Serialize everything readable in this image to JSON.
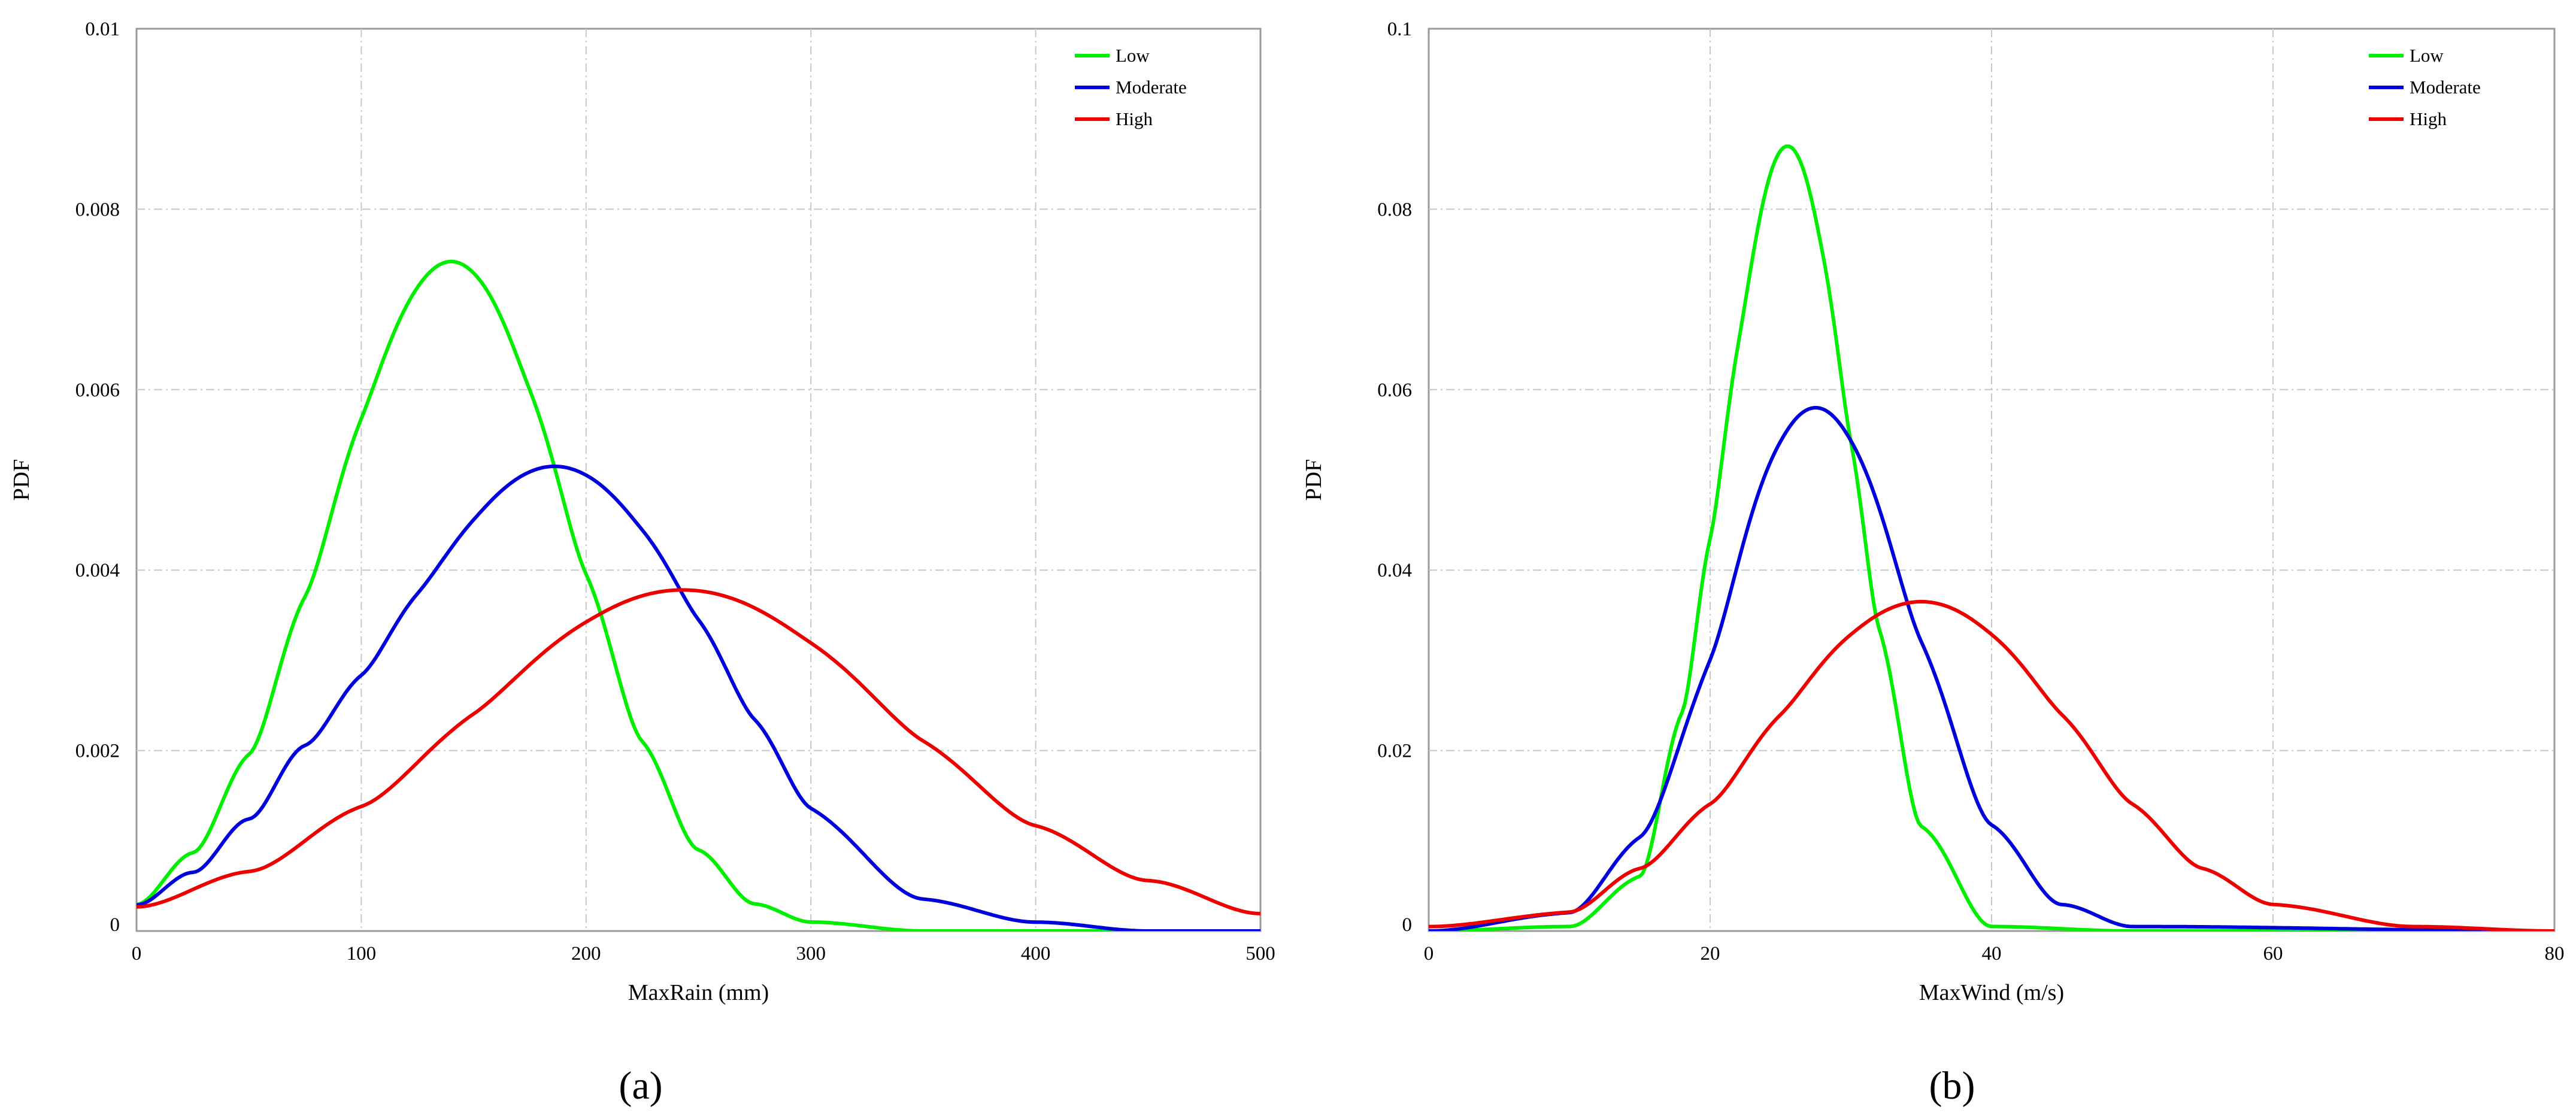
{
  "chart_data": [
    {
      "type": "line",
      "panel_label": "(a)",
      "xlabel": "MaxRain (mm)",
      "ylabel": "PDF",
      "xlim": [
        0,
        500
      ],
      "ylim": [
        0,
        0.01
      ],
      "x_ticks": [
        "0",
        "100",
        "200",
        "300",
        "400",
        "500"
      ],
      "y_ticks": [
        "0",
        "0.002",
        "0.004",
        "0.006",
        "0.008",
        "0.01"
      ],
      "grid": true,
      "legend_position": "top-right",
      "series": [
        {
          "name": "Low",
          "color": "#00ee00",
          "peak_x": 140,
          "peak_y": 0.00742,
          "sigma": 53.5,
          "x": [
            0,
            25,
            50,
            75,
            100,
            125,
            140,
            150,
            175,
            200,
            225,
            250,
            275,
            300,
            350,
            400,
            450,
            500
          ],
          "y": [
            0.0003,
            0.0009,
            0.00205,
            0.00395,
            0.006,
            0.00715,
            0.00742,
            0.0073,
            0.006,
            0.00395,
            0.0021,
            0.0009,
            0.0003,
            0.0001,
            0.0,
            0.0,
            0.0,
            0.0
          ]
        },
        {
          "name": "Moderate",
          "color": "#0000dd",
          "peak_x": 186,
          "peak_y": 0.00515,
          "sigma": 71.5,
          "x": [
            0,
            25,
            50,
            75,
            100,
            125,
            150,
            175,
            186,
            200,
            225,
            250,
            275,
            300,
            350,
            400,
            450,
            500
          ],
          "y": [
            0.0003,
            0.0007,
            0.0014,
            0.00245,
            0.00335,
            0.0043,
            0.0048,
            0.0051,
            0.00515,
            0.00505,
            0.0045,
            0.00345,
            0.0023,
            0.0013,
            0.00035,
            0.0001,
            0.0,
            0.0
          ]
        },
        {
          "name": "High",
          "color": "#ee0000",
          "peak_x": 243,
          "peak_y": 0.00378,
          "sigma": 98,
          "x": [
            0,
            50,
            100,
            150,
            200,
            243,
            250,
            300,
            350,
            400,
            450,
            500
          ],
          "y": [
            0.00028,
            0.0007,
            0.00145,
            0.0024,
            0.0033,
            0.00378,
            0.00377,
            0.0032,
            0.00215,
            0.00125,
            0.0006,
            0.0002
          ]
        }
      ]
    },
    {
      "type": "line",
      "panel_label": "(b)",
      "xlabel": "MaxWind (m/s)",
      "ylabel": "PDF",
      "xlim": [
        0,
        80
      ],
      "ylim": [
        0,
        0.1
      ],
      "x_ticks": [
        "0",
        "20",
        "40",
        "60",
        "80"
      ],
      "y_ticks": [
        "0",
        "0.02",
        "0.04",
        "0.06",
        "0.08",
        "0.1"
      ],
      "grid": true,
      "legend_position": "top-right",
      "series": [
        {
          "name": "Low",
          "color": "#00ee00",
          "peak_x": 25.5,
          "peak_y": 0.087,
          "sigma": 4.6,
          "x": [
            0,
            10,
            15,
            18,
            20,
            22,
            25.5,
            28,
            30,
            32,
            35,
            40,
            50,
            80
          ],
          "y": [
            0.0,
            0.0005,
            0.006,
            0.025,
            0.045,
            0.065,
            0.087,
            0.075,
            0.055,
            0.035,
            0.012,
            0.0005,
            0.0,
            0.0
          ]
        },
        {
          "name": "Moderate",
          "color": "#0000dd",
          "peak_x": 27.5,
          "peak_y": 0.058,
          "sigma": 6.9,
          "x": [
            0,
            10,
            15,
            20,
            25,
            27.5,
            30,
            35,
            40,
            45,
            50,
            80
          ],
          "y": [
            0.0,
            0.002,
            0.01,
            0.026,
            0.053,
            0.058,
            0.055,
            0.032,
            0.012,
            0.003,
            0.0005,
            0.0
          ]
        },
        {
          "name": "High",
          "color": "#ee0000",
          "peak_x": 35,
          "peak_y": 0.0365,
          "sigma": 10.9,
          "x": [
            0,
            10,
            15,
            20,
            25,
            30,
            35,
            40,
            45,
            50,
            55,
            60,
            70,
            80
          ],
          "y": [
            0.0005,
            0.002,
            0.007,
            0.014,
            0.024,
            0.033,
            0.0365,
            0.033,
            0.024,
            0.014,
            0.007,
            0.003,
            0.0005,
            0.0
          ]
        }
      ]
    }
  ]
}
